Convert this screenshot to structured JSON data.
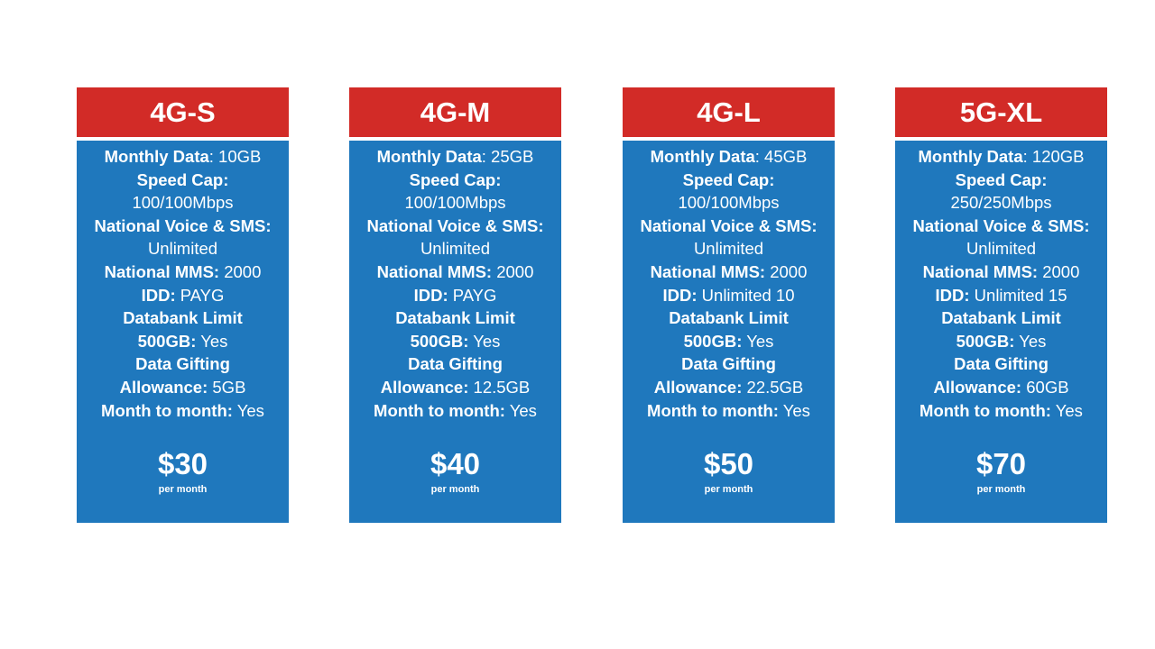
{
  "plans": [
    {
      "name": "4G-S",
      "lines": [
        {
          "label": "Monthly Data",
          "value": ": 10GB"
        },
        {
          "label": "Speed Cap:",
          "value": ""
        },
        {
          "label": "",
          "value": "100/100Mbps"
        },
        {
          "label": "National Voice & SMS:",
          "value": ""
        },
        {
          "label": "",
          "value": "Unlimited"
        },
        {
          "label": "National MMS:",
          "value": " 2000"
        },
        {
          "label": "IDD:",
          "value": " PAYG"
        },
        {
          "label": "Databank Limit",
          "value": ""
        },
        {
          "label": "500GB:",
          "value": " Yes"
        },
        {
          "label": "Data Gifting",
          "value": ""
        },
        {
          "label": "Allowance:",
          "value": " 5GB"
        },
        {
          "label": "Month to month:",
          "value": " Yes"
        }
      ],
      "price": "$30",
      "period": "per month"
    },
    {
      "name": "4G-M",
      "lines": [
        {
          "label": "Monthly Data",
          "value": ": 25GB"
        },
        {
          "label": "Speed Cap:",
          "value": ""
        },
        {
          "label": "",
          "value": "100/100Mbps"
        },
        {
          "label": "National Voice & SMS:",
          "value": ""
        },
        {
          "label": "",
          "value": "Unlimited"
        },
        {
          "label": "National MMS:",
          "value": " 2000"
        },
        {
          "label": "IDD:",
          "value": " PAYG"
        },
        {
          "label": "Databank Limit",
          "value": ""
        },
        {
          "label": "500GB:",
          "value": " Yes"
        },
        {
          "label": "Data Gifting",
          "value": ""
        },
        {
          "label": "Allowance:",
          "value": " 12.5GB"
        },
        {
          "label": "Month to month:",
          "value": " Yes"
        }
      ],
      "price": "$40",
      "period": "per month"
    },
    {
      "name": "4G-L",
      "lines": [
        {
          "label": "Monthly Data",
          "value": ": 45GB"
        },
        {
          "label": "Speed Cap:",
          "value": ""
        },
        {
          "label": "",
          "value": "100/100Mbps"
        },
        {
          "label": "National Voice & SMS:",
          "value": ""
        },
        {
          "label": "",
          "value": "Unlimited"
        },
        {
          "label": "National MMS:",
          "value": " 2000"
        },
        {
          "label": "IDD:",
          "value": " Unlimited 10"
        },
        {
          "label": "Databank Limit",
          "value": ""
        },
        {
          "label": "500GB:",
          "value": " Yes"
        },
        {
          "label": "Data Gifting",
          "value": ""
        },
        {
          "label": "Allowance:",
          "value": " 22.5GB"
        },
        {
          "label": "Month to month:",
          "value": " Yes"
        }
      ],
      "price": "$50",
      "period": "per month"
    },
    {
      "name": "5G-XL",
      "lines": [
        {
          "label": "Monthly Data",
          "value": ": 120GB"
        },
        {
          "label": "Speed Cap:",
          "value": ""
        },
        {
          "label": "",
          "value": "250/250Mbps"
        },
        {
          "label": "National Voice & SMS:",
          "value": ""
        },
        {
          "label": "",
          "value": "Unlimited"
        },
        {
          "label": "National MMS:",
          "value": " 2000"
        },
        {
          "label": "IDD:",
          "value": " Unlimited 15"
        },
        {
          "label": "Databank Limit",
          "value": ""
        },
        {
          "label": "500GB:",
          "value": " Yes"
        },
        {
          "label": "Data Gifting",
          "value": ""
        },
        {
          "label": "Allowance:",
          "value": " 60GB"
        },
        {
          "label": "Month to month:",
          "value": " Yes"
        }
      ],
      "price": "$70",
      "period": "per month"
    }
  ],
  "colors": {
    "header": "#d22b27",
    "body": "#1f78bd",
    "text": "#ffffff"
  }
}
